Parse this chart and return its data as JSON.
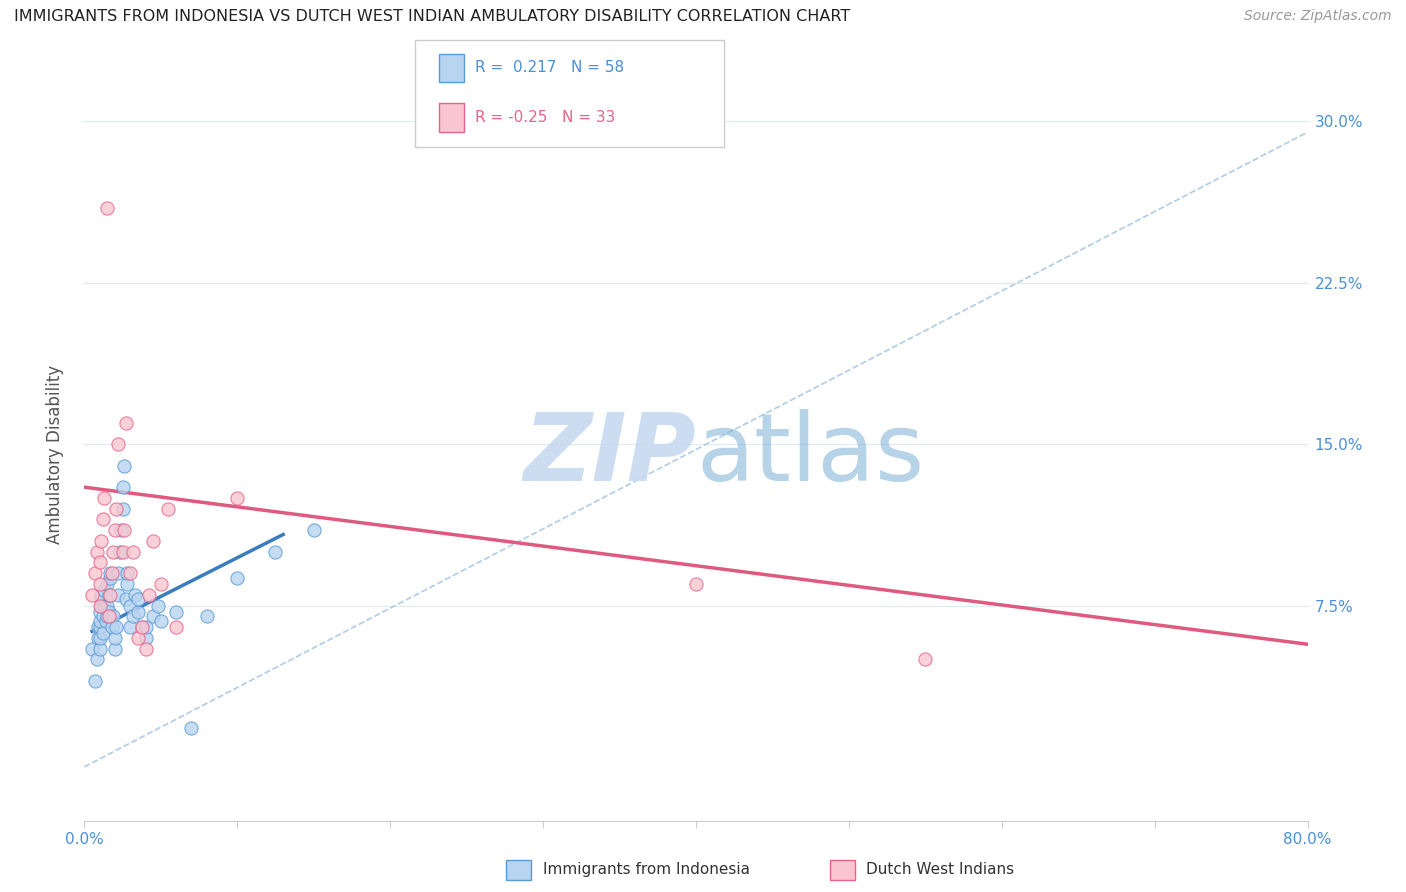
{
  "title": "IMMIGRANTS FROM INDONESIA VS DUTCH WEST INDIAN AMBULATORY DISABILITY CORRELATION CHART",
  "source": "Source: ZipAtlas.com",
  "ylabel": "Ambulatory Disability",
  "xlim": [
    0.0,
    0.8
  ],
  "ylim": [
    -0.025,
    0.315
  ],
  "ytick_positions": [
    0.0,
    0.075,
    0.15,
    0.225,
    0.3
  ],
  "ytick_labels": [
    "",
    "7.5%",
    "15.0%",
    "22.5%",
    "30.0%"
  ],
  "xtick_positions": [
    0.0,
    0.1,
    0.2,
    0.3,
    0.4,
    0.5,
    0.6,
    0.7,
    0.8
  ],
  "xtick_labels": [
    "0.0%",
    "",
    "",
    "",
    "",
    "",
    "",
    "",
    "80.0%"
  ],
  "blue_fill": "#b8d4f0",
  "blue_edge": "#5b9bd5",
  "pink_fill": "#f9c6d0",
  "pink_edge": "#e8638a",
  "blue_line_color": "#3a7dbf",
  "pink_line_color": "#e05a80",
  "dashed_color": "#9dbfe0",
  "r_indonesia": 0.217,
  "n_indonesia": 58,
  "r_dutch": -0.25,
  "n_dutch": 33,
  "indonesia_x": [
    0.005,
    0.007,
    0.008,
    0.009,
    0.009,
    0.01,
    0.01,
    0.01,
    0.01,
    0.01,
    0.011,
    0.011,
    0.011,
    0.012,
    0.012,
    0.013,
    0.013,
    0.014,
    0.015,
    0.015,
    0.015,
    0.016,
    0.016,
    0.017,
    0.017,
    0.018,
    0.019,
    0.02,
    0.02,
    0.021,
    0.022,
    0.022,
    0.023,
    0.024,
    0.025,
    0.025,
    0.026,
    0.027,
    0.028,
    0.028,
    0.03,
    0.03,
    0.032,
    0.033,
    0.035,
    0.035,
    0.038,
    0.04,
    0.04,
    0.045,
    0.048,
    0.05,
    0.06,
    0.07,
    0.08,
    0.1,
    0.125,
    0.15
  ],
  "indonesia_y": [
    0.055,
    0.04,
    0.05,
    0.06,
    0.065,
    0.055,
    0.06,
    0.065,
    0.068,
    0.072,
    0.075,
    0.078,
    0.08,
    0.062,
    0.07,
    0.075,
    0.082,
    0.068,
    0.07,
    0.075,
    0.085,
    0.072,
    0.08,
    0.088,
    0.09,
    0.065,
    0.07,
    0.055,
    0.06,
    0.065,
    0.08,
    0.09,
    0.1,
    0.11,
    0.12,
    0.13,
    0.14,
    0.078,
    0.085,
    0.09,
    0.065,
    0.075,
    0.07,
    0.08,
    0.072,
    0.078,
    0.065,
    0.06,
    0.065,
    0.07,
    0.075,
    0.068,
    0.072,
    0.018,
    0.07,
    0.088,
    0.1,
    0.11
  ],
  "dutch_x": [
    0.005,
    0.007,
    0.008,
    0.01,
    0.01,
    0.01,
    0.011,
    0.012,
    0.013,
    0.015,
    0.016,
    0.017,
    0.018,
    0.019,
    0.02,
    0.021,
    0.022,
    0.025,
    0.026,
    0.027,
    0.03,
    0.032,
    0.035,
    0.038,
    0.04,
    0.042,
    0.045,
    0.05,
    0.055,
    0.06,
    0.1,
    0.4,
    0.55
  ],
  "dutch_y": [
    0.08,
    0.09,
    0.1,
    0.075,
    0.085,
    0.095,
    0.105,
    0.115,
    0.125,
    0.26,
    0.07,
    0.08,
    0.09,
    0.1,
    0.11,
    0.12,
    0.15,
    0.1,
    0.11,
    0.16,
    0.09,
    0.1,
    0.06,
    0.065,
    0.055,
    0.08,
    0.105,
    0.085,
    0.12,
    0.065,
    0.125,
    0.085,
    0.05
  ],
  "indonesia_line_x": [
    0.005,
    0.13
  ],
  "indonesia_line_y": [
    0.063,
    0.108
  ],
  "dutch_line_x": [
    0.0,
    0.8
  ],
  "dutch_line_y": [
    0.13,
    0.057
  ],
  "dashed_line_x": [
    0.0,
    0.8
  ],
  "dashed_line_y": [
    0.0,
    0.295
  ],
  "watermark_zip_color": "#c5d8ef",
  "watermark_atlas_color": "#7ab0d4",
  "grid_color": "#ddeaf5",
  "grid_h_color": "#e0eaf5",
  "bottom_spine_color": "#cccccc"
}
